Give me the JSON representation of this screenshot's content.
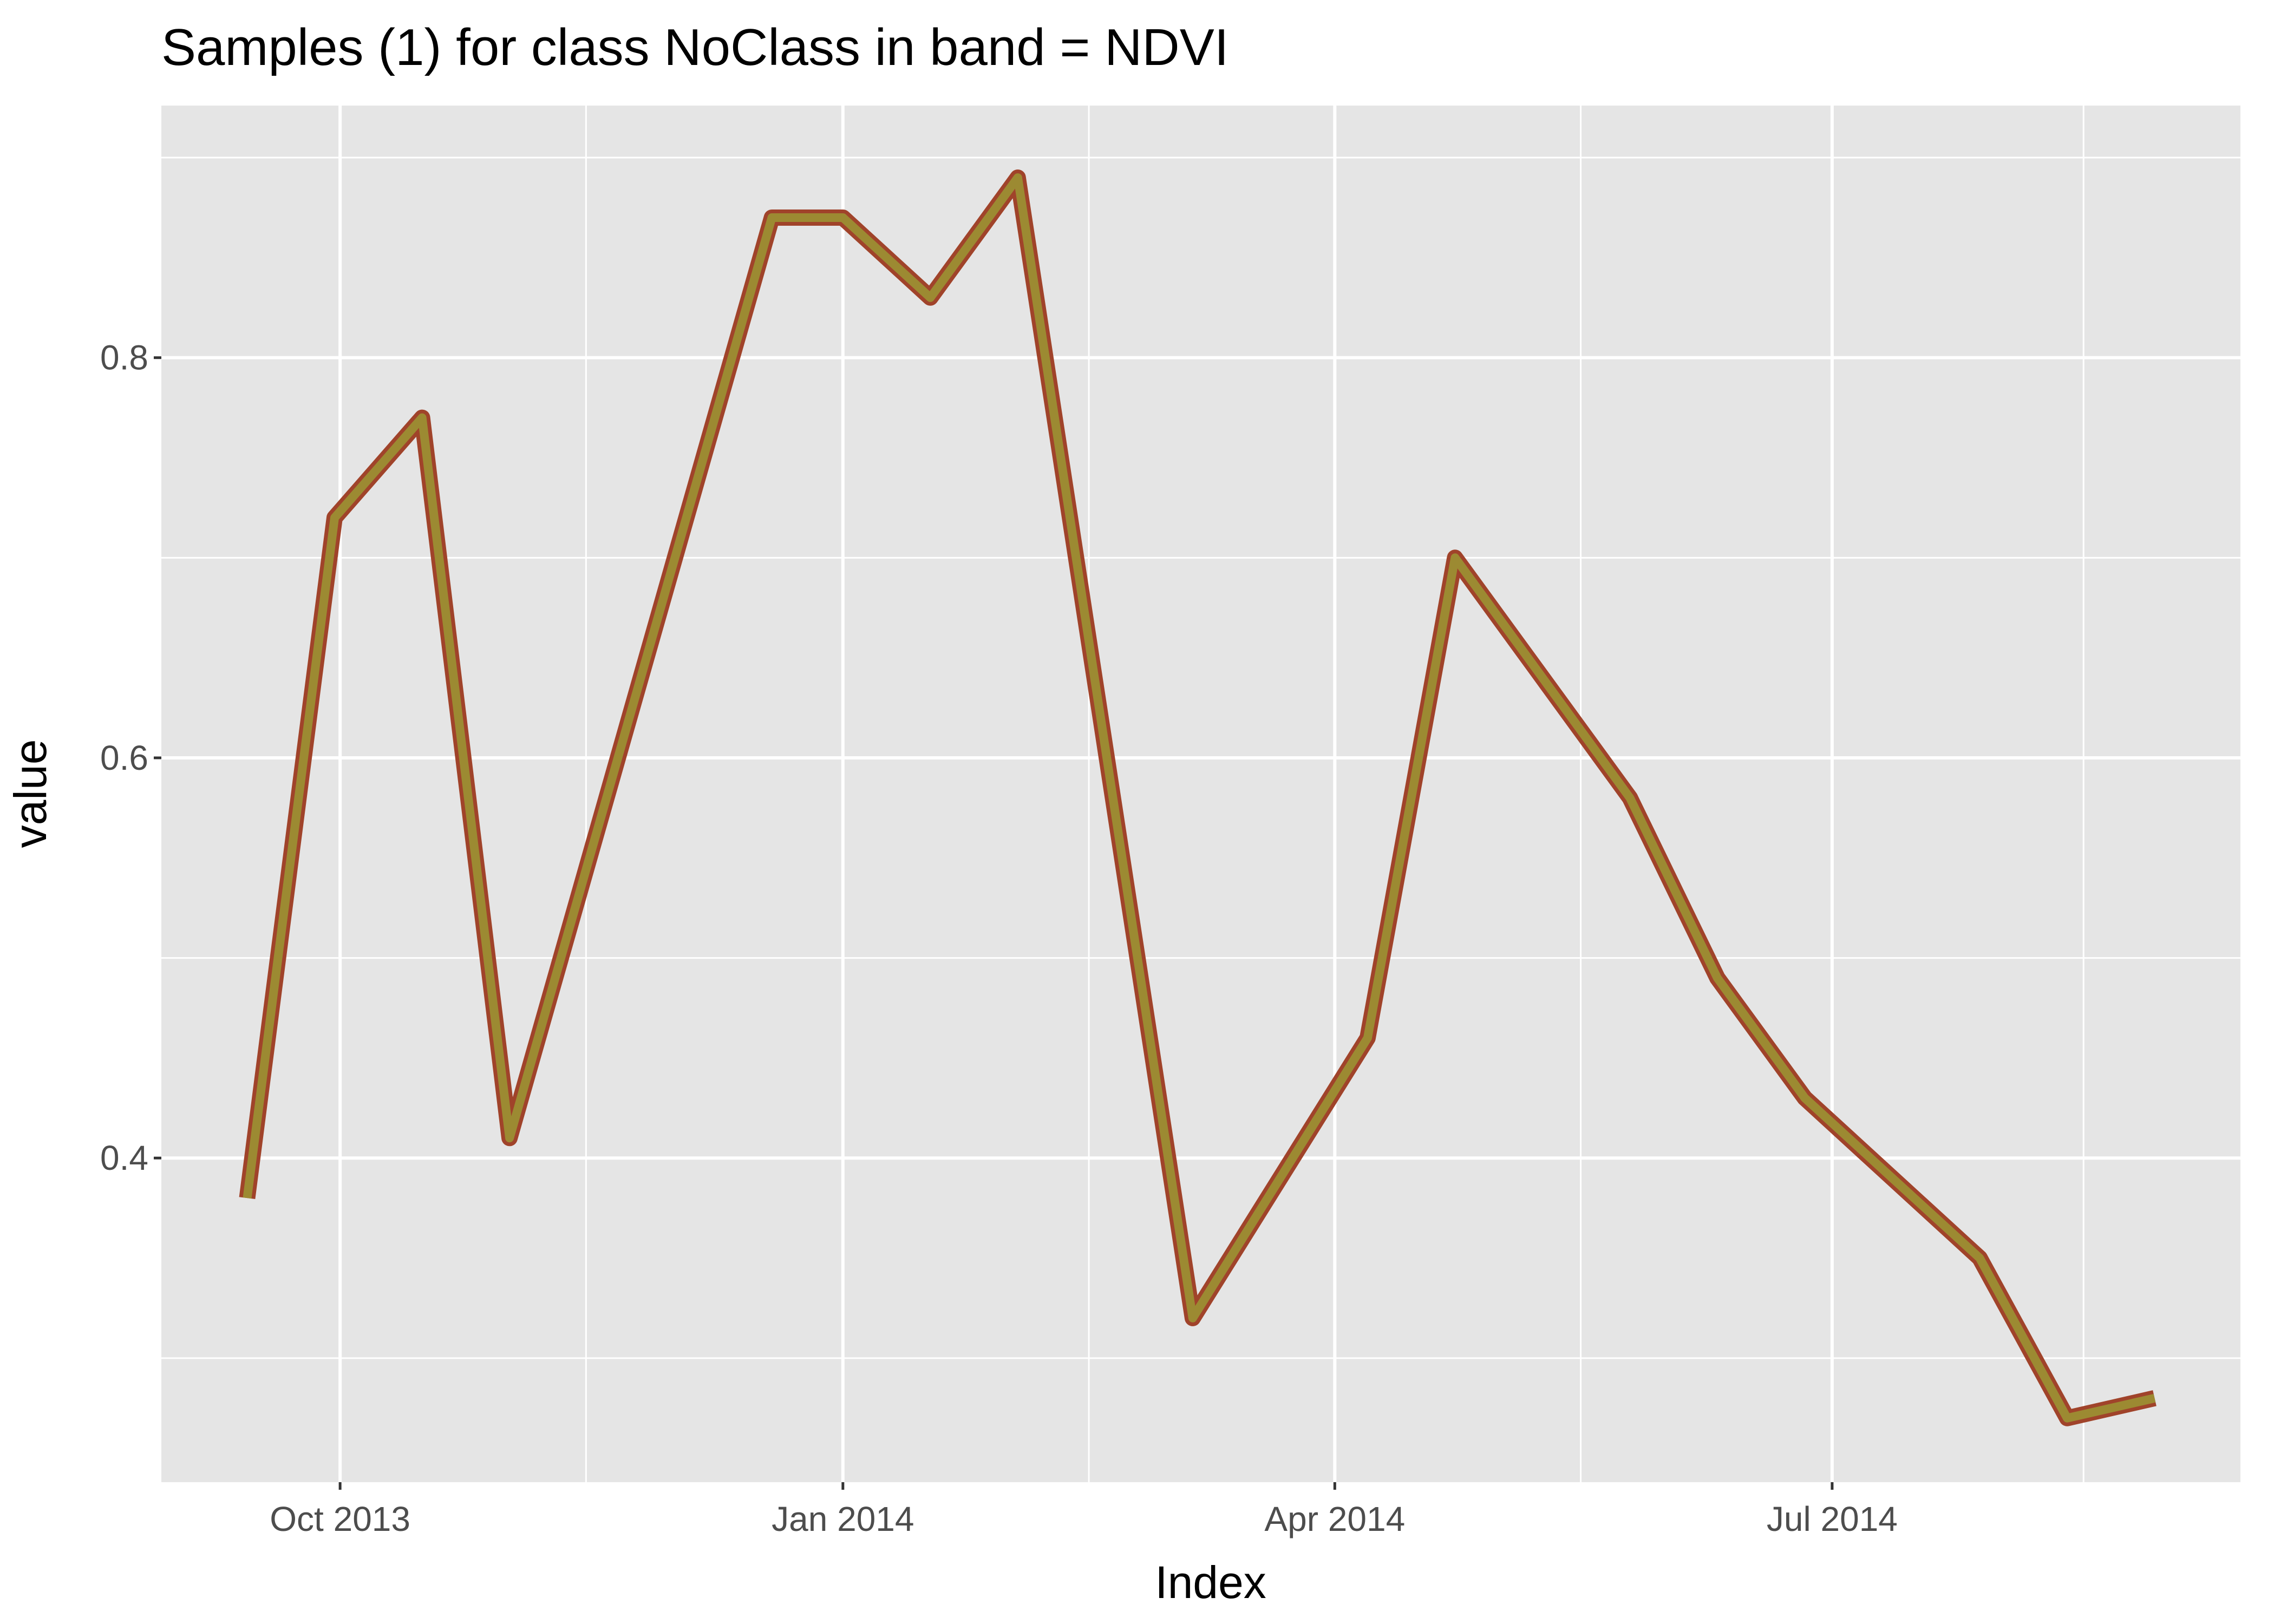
{
  "chart_data": {
    "type": "line",
    "title": "Samples (1) for class NoClass in band = NDVI",
    "xlabel": "Index",
    "ylabel": "value",
    "x_tick_labels": [
      "Oct 2013",
      "Jan 2014",
      "Apr 2014",
      "Jul 2014"
    ],
    "y_tick_labels": [
      "0.4",
      "0.6",
      "0.8"
    ],
    "grid": true,
    "legend": "none",
    "colors": {
      "panel_background": "#e5e5e5",
      "grid": "#ffffff",
      "line_outer": "#a0432a",
      "line_inner": "#9c8a32"
    },
    "series": [
      {
        "x": [
          "2013-09-14",
          "2013-09-30",
          "2013-10-16",
          "2013-11-01",
          "2013-12-19",
          "2014-01-01",
          "2014-01-17",
          "2014-02-02",
          "2014-03-06",
          "2014-04-07",
          "2014-04-23",
          "2014-05-09",
          "2014-05-25",
          "2014-06-10",
          "2014-06-26",
          "2014-07-12",
          "2014-07-28",
          "2014-08-13",
          "2014-08-29"
        ],
        "values": [
          0.38,
          0.72,
          0.77,
          0.41,
          0.87,
          0.87,
          0.83,
          0.89,
          0.32,
          0.46,
          0.7,
          0.64,
          0.58,
          0.49,
          0.43,
          0.39,
          0.35,
          0.27,
          0.28
        ]
      }
    ]
  }
}
